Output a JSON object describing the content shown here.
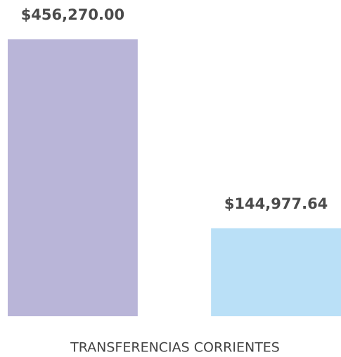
{
  "chart_data": {
    "type": "bar",
    "categories": [
      "TRANSFERENCIAS CORRIENTES"
    ],
    "series": [
      {
        "color": "#b9b5d8",
        "values": [
          456270.0
        ],
        "value_labels": [
          "$456,270.00"
        ]
      },
      {
        "color": "#bae0f7",
        "values": [
          144977.64
        ],
        "value_labels": [
          "$144,977.64"
        ]
      }
    ]
  }
}
